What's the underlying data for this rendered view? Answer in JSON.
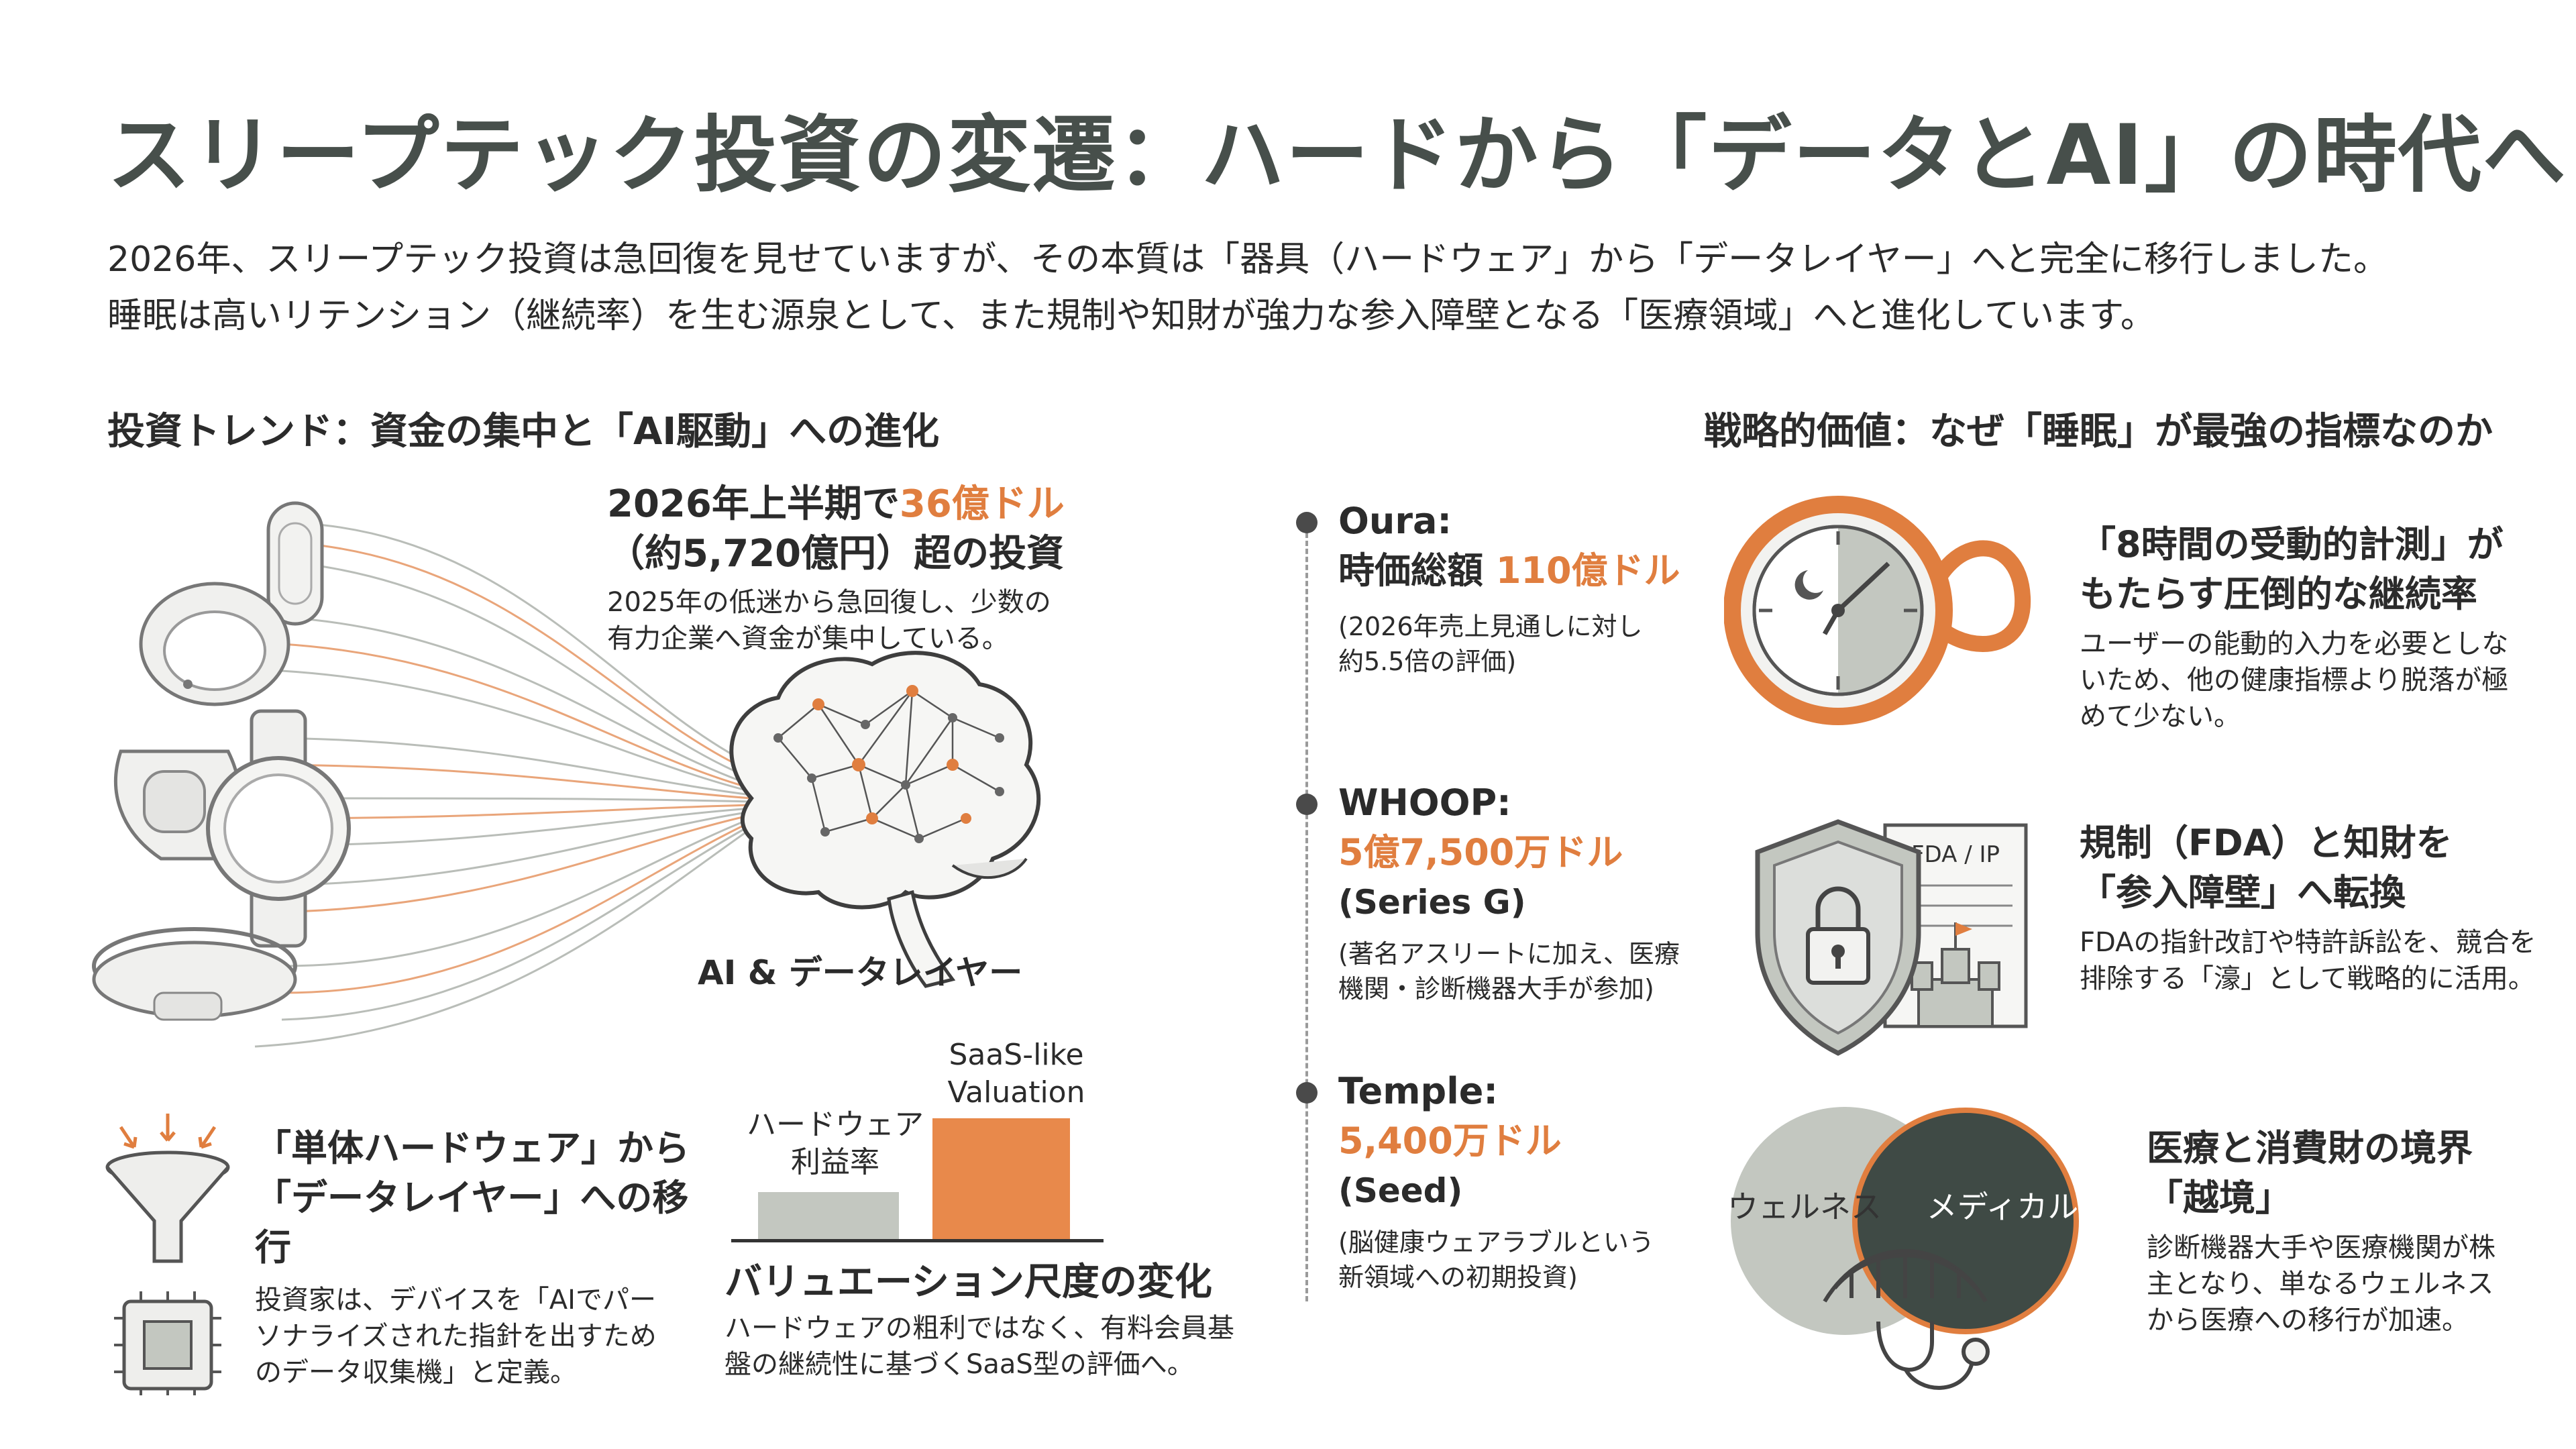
{
  "title": "スリープテック投資の変遷：ハードから「データとAI」の時代へ",
  "intro": {
    "line1": "2026年、スリープテック投資は急回復を見せていますが、その本質は「器具（ハードウェア」から「データレイヤー」へと完全に移行しました。",
    "line2": "睡眠は高いリテンション（継続率）を生む源泉として、また規制や知財が強力な参入障壁となる「医療領域」へと進化しています。"
  },
  "left": {
    "heading": "投資トレンド：資金の集中と「AI駆動」への進化",
    "investment": {
      "line1_pre": "2026年上半期で",
      "line1_highlight": "36億ドル",
      "line2": "（約5,720億円）超の投資",
      "desc1": "2025年の低迷から急回復し、少数の",
      "desc2": "有力企業へ資金が集中している。"
    },
    "brain_label": "AI & データレイヤー",
    "shift": {
      "h1": "「単体ハードウェア」から",
      "h2": "「データレイヤー」への移",
      "h3": "行",
      "p1": "投資家は、デバイスを「AIでパー",
      "p2": "ソナライズされた指針を出すため",
      "p3": "のデータ収集機」と定義。"
    },
    "valuation": {
      "bar_low_label1": "ハードウェア",
      "bar_low_label2": "利益率",
      "bar_high_label1": "SaaS-like",
      "bar_high_label2": "Valuation",
      "heading": "バリュエーション尺度の変化",
      "p1": "ハードウェアの粗利ではなく、有料会員基",
      "p2": "盤の継続性に基づくSaaS型の評価へ。"
    }
  },
  "timeline": [
    {
      "name": "Oura:",
      "metric_pre": "時価総額 ",
      "metric_highlight": "110億ドル",
      "round": "",
      "note1": "(2026年売上見通しに対し",
      "note2": "約5.5倍の評価)"
    },
    {
      "name": "WHOOP:",
      "metric_pre": "",
      "metric_highlight": "5億7,500万ドル",
      "round": "(Series G)",
      "note1": "(著名アスリートに加え、医療",
      "note2": "機関・診断機器大手が参加)"
    },
    {
      "name": "Temple:",
      "metric_pre": "",
      "metric_highlight": "5,400万ドル",
      "round": "(Seed)",
      "note1": "(脳健康ウェアラブルという",
      "note2": "新領域への初期投資)"
    }
  ],
  "right": {
    "heading": "戦略的価値：なぜ「睡眠」が最強の指標なのか",
    "item1": {
      "h1": "「8時間の受動的計測」が",
      "h2": "もたらす圧倒的な継続率",
      "p1": "ユーザーの能動的入力を必要としな",
      "p2": "いため、他の健康指標より脱落が極",
      "p3": "めて少ない。"
    },
    "item2": {
      "doc_label": "FDA / IP",
      "h1": "規制（FDA）と知財を",
      "h2": "「参入障壁」へ転換",
      "p1": "FDAの指針改訂や特許訴訟を、競合を",
      "p2": "排除する「濠」として戦略的に活用。"
    },
    "item3": {
      "venn_left": "ウェルネス",
      "venn_right": "メディカル",
      "h1": "医療と消費財の境界",
      "h2": "「越境」",
      "p1": "診断機器大手や医療機関が株",
      "p2": "主となり、単なるウェルネス",
      "p3": "から医療への移行が加速。"
    }
  },
  "colors": {
    "accent": "#e07e3f",
    "dark": "#3f4a45",
    "gray": "#c3c7c0",
    "title": "#474f4b"
  }
}
